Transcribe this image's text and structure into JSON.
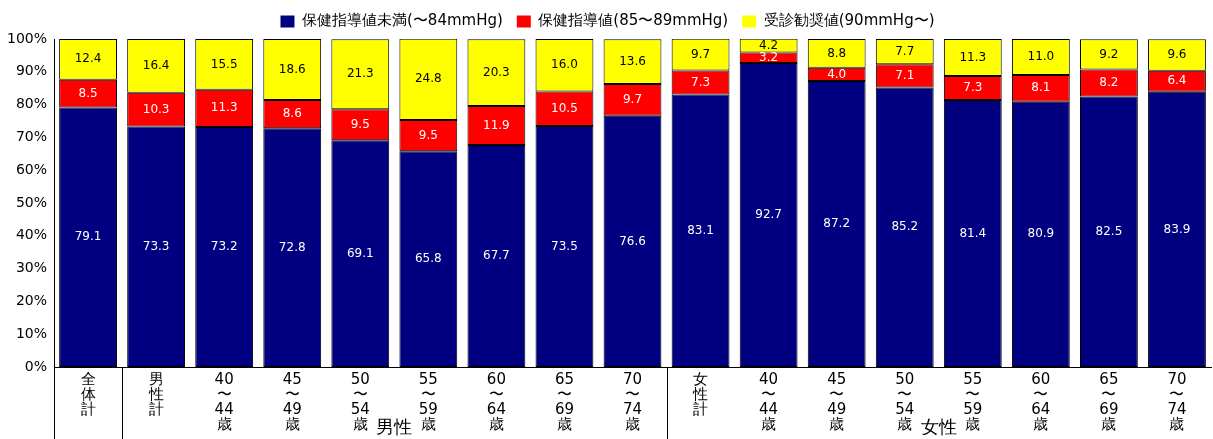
{
  "chart_data": {
    "type": "bar",
    "stacked": true,
    "legend": "top",
    "grid": false,
    "data_labels": true,
    "categories": [
      "全体計",
      "男性計",
      "40〜44歳",
      "45〜49歳",
      "50〜54歳",
      "55〜59歳",
      "60〜64歳",
      "65〜69歳",
      "70〜74歳",
      "女性計",
      "40〜44歳",
      "45〜49歳",
      "50〜54歳",
      "55〜59歳",
      "60〜64歳",
      "65〜69歳",
      "70〜74歳"
    ],
    "ylim": [
      0,
      100
    ],
    "yticks": [
      {
        "value": 0,
        "label": "0%"
      },
      {
        "value": 10,
        "label": "10%"
      },
      {
        "value": 20,
        "label": "20%"
      },
      {
        "value": 30,
        "label": "30%"
      },
      {
        "value": 40,
        "label": "40%"
      },
      {
        "value": 50,
        "label": "50%"
      },
      {
        "value": 60,
        "label": "60%"
      },
      {
        "value": 70,
        "label": "70%"
      },
      {
        "value": 80,
        "label": "80%"
      },
      {
        "value": 90,
        "label": "90%"
      },
      {
        "value": 100,
        "label": "100%"
      }
    ],
    "annotations": [
      "男性",
      "女性"
    ],
    "series": [
      {
        "name": "保健指導値未満(〜84mmHg)",
        "color": "#000080",
        "values": [
          79.1,
          73.3,
          73.2,
          72.8,
          69.1,
          65.8,
          67.7,
          73.5,
          76.6,
          83.1,
          92.7,
          87.2,
          85.2,
          81.4,
          80.9,
          82.5,
          83.9
        ],
        "value_labels": [
          "79.1",
          "73.3",
          "73.2",
          "72.8",
          "69.1",
          "65.8",
          "67.7",
          "73.5",
          "76.6",
          "83.1",
          "92.7",
          "87.2",
          "85.2",
          "81.4",
          "80.9",
          "82.5",
          "83.9"
        ]
      },
      {
        "name": "保健指導値(85〜89mmHg)",
        "color": "#ff0000",
        "values": [
          8.5,
          10.3,
          11.3,
          8.6,
          9.5,
          9.5,
          11.9,
          10.5,
          9.7,
          7.3,
          3.2,
          4.0,
          7.1,
          7.3,
          8.1,
          8.2,
          6.4
        ],
        "value_labels": [
          "8.5",
          "10.3",
          "11.3",
          "8.6",
          "9.5",
          "9.5",
          "11.9",
          "10.5",
          "9.7",
          "7.3",
          "3.2",
          "4.0",
          "7.1",
          "7.3",
          "8.1",
          "8.2",
          "6.4"
        ]
      },
      {
        "name": "受診勧奨値(90mmHg〜)",
        "color": "#ffff00",
        "values": [
          12.4,
          16.4,
          15.5,
          18.6,
          21.3,
          24.8,
          20.3,
          16.0,
          13.6,
          9.7,
          4.2,
          8.8,
          7.7,
          11.3,
          11.0,
          9.2,
          9.6
        ],
        "value_labels": [
          "12.4",
          "16.4",
          "15.5",
          "18.6",
          "21.3",
          "24.8",
          "20.3",
          "16.0",
          "13.6",
          "9.7",
          "4.2",
          "8.8",
          "7.7",
          "11.3",
          "11.0",
          "9.2",
          "9.6"
        ]
      }
    ]
  }
}
